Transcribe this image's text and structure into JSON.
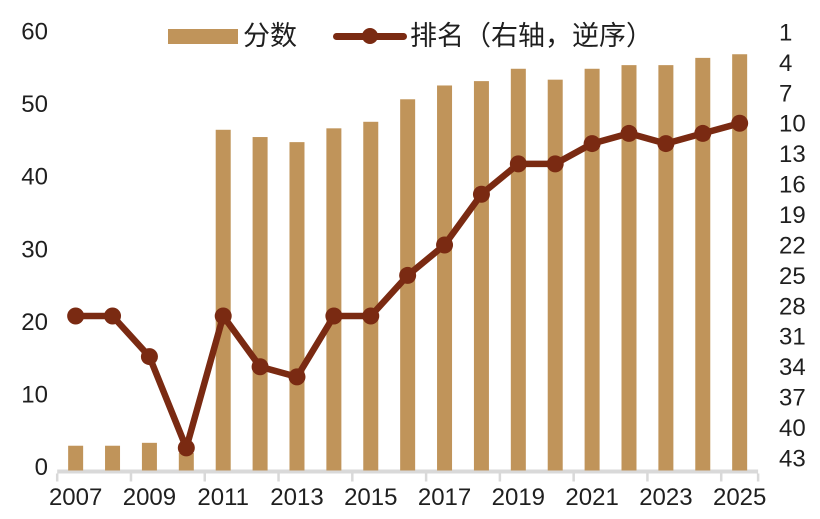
{
  "legend": {
    "score_label": "分数",
    "rank_label": "排名（右轴，逆序）"
  },
  "colors": {
    "bar": "#C0945A",
    "line": "#7A2A12",
    "axis_line": "#D9D9D9",
    "text": "#1f1f1f",
    "background": "#FFFFFF"
  },
  "chart_data": {
    "type": "combo-bar-line",
    "title": "",
    "categories": [
      2007,
      2008,
      2009,
      2010,
      2011,
      2012,
      2013,
      2014,
      2015,
      2016,
      2017,
      2018,
      2019,
      2020,
      2021,
      2022,
      2023,
      2024,
      2025
    ],
    "series": [
      {
        "name": "分数",
        "type": "bar",
        "axis": "left",
        "values": [
          2.9,
          2.9,
          3.3,
          1.9,
          46.4,
          45.4,
          44.7,
          46.6,
          47.5,
          50.6,
          52.5,
          53.1,
          54.8,
          53.3,
          54.8,
          55.3,
          55.3,
          56.3,
          56.8
        ]
      },
      {
        "name": "排名（右轴，逆序）",
        "type": "line",
        "axis": "right_inverted",
        "values": [
          29,
          29,
          33,
          42,
          29,
          34,
          35,
          29,
          29,
          25,
          22,
          17,
          14,
          14,
          12,
          11,
          12,
          11,
          10
        ]
      }
    ],
    "left_axis": {
      "range": [
        0,
        60
      ],
      "tick_step": 10,
      "ticks": [
        "0",
        "10",
        "20",
        "30",
        "40",
        "50",
        "60"
      ]
    },
    "right_axis": {
      "range": [
        1,
        43
      ],
      "tick_step": 3,
      "inverted": true,
      "ticks": [
        "1",
        "4",
        "7",
        "10",
        "13",
        "16",
        "19",
        "22",
        "25",
        "28",
        "31",
        "34",
        "37",
        "40",
        "43"
      ]
    },
    "x_axis": {
      "tick_labels": [
        "2007",
        "2009",
        "2011",
        "2013",
        "2015",
        "2017",
        "2019",
        "2021",
        "2023",
        "2025"
      ]
    },
    "legend_position": "top",
    "grid": false
  }
}
